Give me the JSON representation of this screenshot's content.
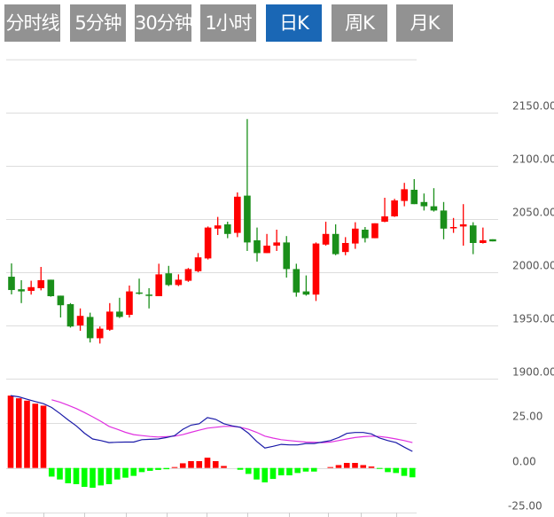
{
  "tabs": [
    {
      "label": "分时线",
      "active": false
    },
    {
      "label": "5分钟",
      "active": false
    },
    {
      "label": "30分钟",
      "active": false
    },
    {
      "label": "1小时",
      "active": false
    },
    {
      "label": "日K",
      "active": true
    },
    {
      "label": "周K",
      "active": false
    },
    {
      "label": "月K",
      "active": false
    }
  ],
  "colors": {
    "tab_bg": "#929292",
    "tab_active_bg": "#1a67b5",
    "up": "#ff0000",
    "down": "#1a8f1a",
    "macd_up": "#ff0000",
    "macd_down": "#00ff00",
    "dif": "#1a1aa8",
    "dea": "#e030e0",
    "grid": "#dddddd"
  },
  "chart_data": [
    {
      "type": "candlestick",
      "ylim": [
        1900,
        2200
      ],
      "y_ticks": [
        "2150.00",
        "2100.00",
        "2050.00",
        "2000.00",
        "1950.00",
        "1900.00"
      ],
      "y_tick_values": [
        2150,
        2100,
        2050,
        2000,
        1950,
        1900
      ],
      "grid": true,
      "candles": [
        [
          1995.8,
          2008.3,
          1979.2,
          1983.3
        ],
        [
          1984,
          1992.5,
          1971,
          1982
        ],
        [
          1982.5,
          1992,
          1979,
          1986
        ],
        [
          1985,
          2005,
          1983,
          1992.5
        ],
        [
          1993,
          1993,
          1977,
          1977.5
        ],
        [
          1978,
          1978,
          1957.5,
          1969
        ],
        [
          1970,
          1971,
          1948,
          1949
        ],
        [
          1950,
          1966,
          1945,
          1959
        ],
        [
          1958,
          1962,
          1934,
          1938
        ],
        [
          1938,
          1949,
          1933,
          1947
        ],
        [
          1946,
          1971,
          1945,
          1963
        ],
        [
          1963,
          1976,
          1957,
          1958
        ],
        [
          1960,
          1987.5,
          1957.5,
          1982
        ],
        [
          1981,
          1994,
          1979,
          1980
        ],
        [
          1979,
          1985,
          1966,
          1978
        ],
        [
          1977.5,
          2008,
          1977.5,
          1998
        ],
        [
          1999,
          2006,
          1987,
          1988
        ],
        [
          1988,
          1998,
          1987,
          1993
        ],
        [
          1992,
          2004,
          1991,
          2003
        ],
        [
          2001,
          2018,
          2000,
          2014
        ],
        [
          2013,
          2043,
          2012,
          2042
        ],
        [
          2041,
          2052,
          2035,
          2044
        ],
        [
          2045,
          2047.5,
          2032,
          2036
        ],
        [
          2037,
          2075,
          2033,
          2071
        ],
        [
          2072,
          2144,
          2020,
          2028
        ],
        [
          2030,
          2042,
          2010,
          2018
        ],
        [
          2018,
          2036,
          2018,
          2025
        ],
        [
          2025,
          2040,
          2020,
          2028
        ],
        [
          2028,
          2034,
          1995,
          2003
        ],
        [
          2003,
          2008,
          1977,
          1981
        ],
        [
          1982,
          1997,
          1978,
          1979
        ],
        [
          1979,
          2028,
          1973,
          2027
        ],
        [
          2026,
          2047.5,
          2025,
          2036
        ],
        [
          2036,
          2045,
          2016,
          2017
        ],
        [
          2019,
          2033,
          2016,
          2027.5
        ],
        [
          2027,
          2047,
          2022,
          2041
        ],
        [
          2040,
          2042.5,
          2028,
          2032
        ],
        [
          2032,
          2046,
          2032,
          2046
        ],
        [
          2047.5,
          2070,
          2047,
          2052.5
        ],
        [
          2052.5,
          2069,
          2052,
          2067.5
        ],
        [
          2067,
          2084,
          2062,
          2078
        ],
        [
          2077.5,
          2087.5,
          2064,
          2064
        ],
        [
          2066,
          2074,
          2058,
          2062
        ],
        [
          2062,
          2079,
          2057,
          2058
        ],
        [
          2058,
          2066,
          2031,
          2041
        ],
        [
          2041.5,
          2051,
          2037,
          2042.5
        ],
        [
          2043,
          2064,
          2025,
          2045
        ],
        [
          2044,
          2047,
          2017,
          2027.5
        ],
        [
          2027.5,
          2042,
          2027,
          2030
        ],
        [
          2031,
          2031,
          2029,
          2029
        ]
      ],
      "candle_fields": [
        "open",
        "high",
        "low",
        "close"
      ]
    },
    {
      "type": "macd",
      "ylim": [
        -25,
        50
      ],
      "y_ticks": [
        "25.00",
        "0.00",
        "-25.00"
      ],
      "y_tick_values": [
        25,
        0,
        -25
      ],
      "histogram": [
        40.2,
        38.7,
        37.4,
        35.7,
        34.6,
        -4.8,
        -6.4,
        -8.5,
        -9.0,
        -10.5,
        -11.0,
        -9.7,
        -9.0,
        -6.4,
        -5.4,
        -4.4,
        -2.3,
        -1.6,
        -1.1,
        -0.7,
        0.5,
        2.6,
        3.8,
        3.8,
        5.7,
        3.8,
        1.1,
        0,
        -1.0,
        -3.3,
        -6.4,
        -8.0,
        -6.1,
        -4.1,
        -4.1,
        -2.8,
        -2.0,
        -2.0,
        0,
        0.5,
        1.6,
        2.8,
        2.8,
        1.6,
        0.8,
        -0.5,
        -2.3,
        -2.8,
        -4.4,
        -5.2
      ],
      "dif": [
        40.2,
        39.5,
        38.2,
        36.9,
        35.7,
        33.6,
        30.3,
        26.7,
        23.4,
        19.3,
        16.1,
        15.2,
        14.1,
        14.3,
        14.4,
        14.4,
        15.7,
        15.9,
        16.1,
        16.9,
        18.0,
        21.5,
        23.8,
        24.6,
        28.0,
        27.0,
        24.6,
        23.4,
        22.6,
        19.3,
        14.8,
        11.1,
        12.0,
        13.1,
        12.8,
        12.8,
        13.6,
        13.6,
        14.4,
        15.2,
        16.9,
        19.2,
        19.7,
        19.7,
        18.9,
        16.6,
        15.2,
        14.1,
        11.6,
        9.2
      ],
      "dea": [
        null,
        null,
        null,
        null,
        null,
        37.9,
        36.6,
        34.9,
        33.0,
        30.8,
        28.4,
        25.9,
        23.1,
        21.5,
        19.8,
        18.5,
        18.0,
        17.5,
        17.2,
        17.4,
        17.7,
        18.5,
        19.8,
        21.0,
        22.1,
        22.6,
        23.1,
        23.1,
        22.6,
        21.5,
        19.8,
        17.7,
        16.6,
        15.7,
        15.2,
        14.8,
        14.4,
        14.3,
        14.1,
        14.4,
        15.2,
        16.1,
        16.9,
        17.4,
        17.7,
        17.5,
        16.9,
        16.1,
        15.2,
        14.1
      ]
    }
  ]
}
